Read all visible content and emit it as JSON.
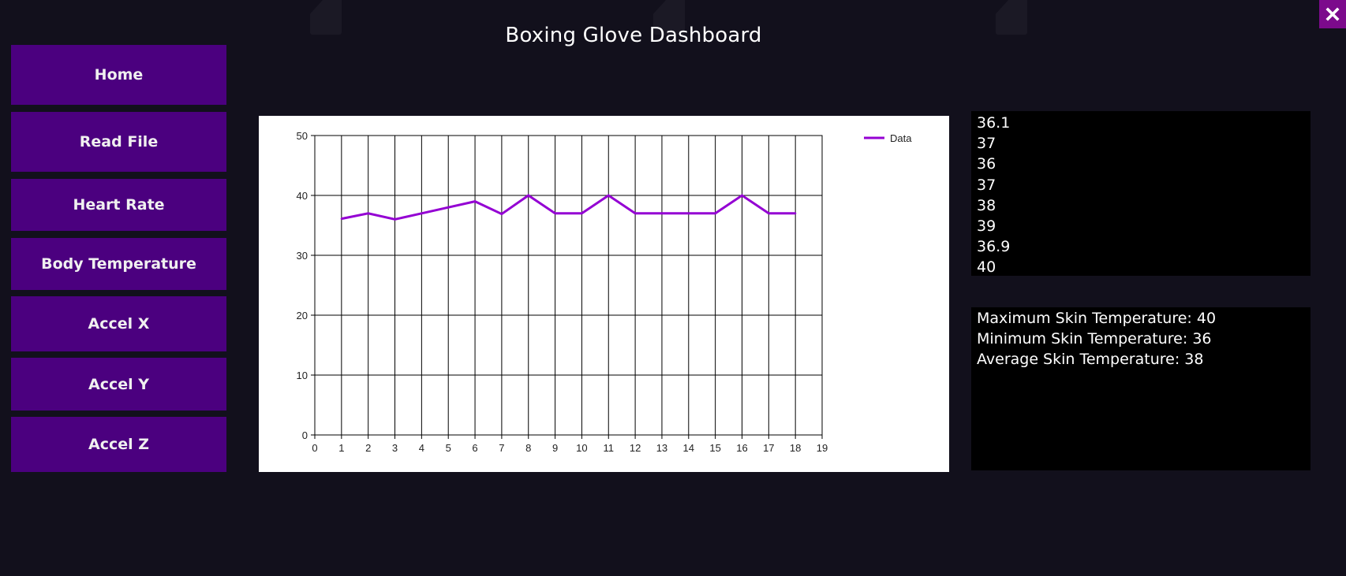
{
  "window": {
    "title": "Boxing Glove Dashboard",
    "close_icon": "close-icon",
    "close_color": "#7c0a8c"
  },
  "sidebar": {
    "items": [
      {
        "label": "Home"
      },
      {
        "label": "Read File"
      },
      {
        "label": "Heart Rate"
      },
      {
        "label": "Body Temperature"
      },
      {
        "label": "Accel X"
      },
      {
        "label": "Accel Y"
      },
      {
        "label": "Accel Z"
      }
    ],
    "button_color": "#4b007f"
  },
  "readings": [
    "36.1",
    "37",
    "36",
    "37",
    "38",
    "39",
    "36.9",
    "40"
  ],
  "stats": [
    {
      "label": "Maximum Skin Temperature: ",
      "value": "40"
    },
    {
      "label": "Minimum Skin Temperature: ",
      "value": "36"
    },
    {
      "label": "Average Skin Temperature: ",
      "value": "38"
    }
  ],
  "chart_data": {
    "type": "line",
    "title": "",
    "xlabel": "",
    "ylabel": "",
    "x": [
      1,
      2,
      3,
      4,
      5,
      6,
      7,
      8,
      9,
      10,
      11,
      12,
      13,
      14,
      15,
      16,
      17,
      18
    ],
    "series": [
      {
        "name": "Data",
        "color": "#9400d3",
        "values": [
          36.1,
          37,
          36,
          37,
          38,
          39,
          36.9,
          40,
          37,
          37,
          40,
          37,
          37,
          37,
          37,
          40,
          37,
          37
        ]
      }
    ],
    "xlim": [
      0,
      19
    ],
    "ylim": [
      0,
      50
    ],
    "xticks": [
      "0",
      "1",
      "2",
      "3",
      "4",
      "5",
      "6",
      "7",
      "8",
      "9",
      "10",
      "11",
      "12",
      "13",
      "14",
      "15",
      "16",
      "17",
      "18",
      "19"
    ],
    "yticks": [
      "0",
      "10",
      "20",
      "30",
      "40",
      "50"
    ],
    "grid": true,
    "legend": "top-right"
  }
}
